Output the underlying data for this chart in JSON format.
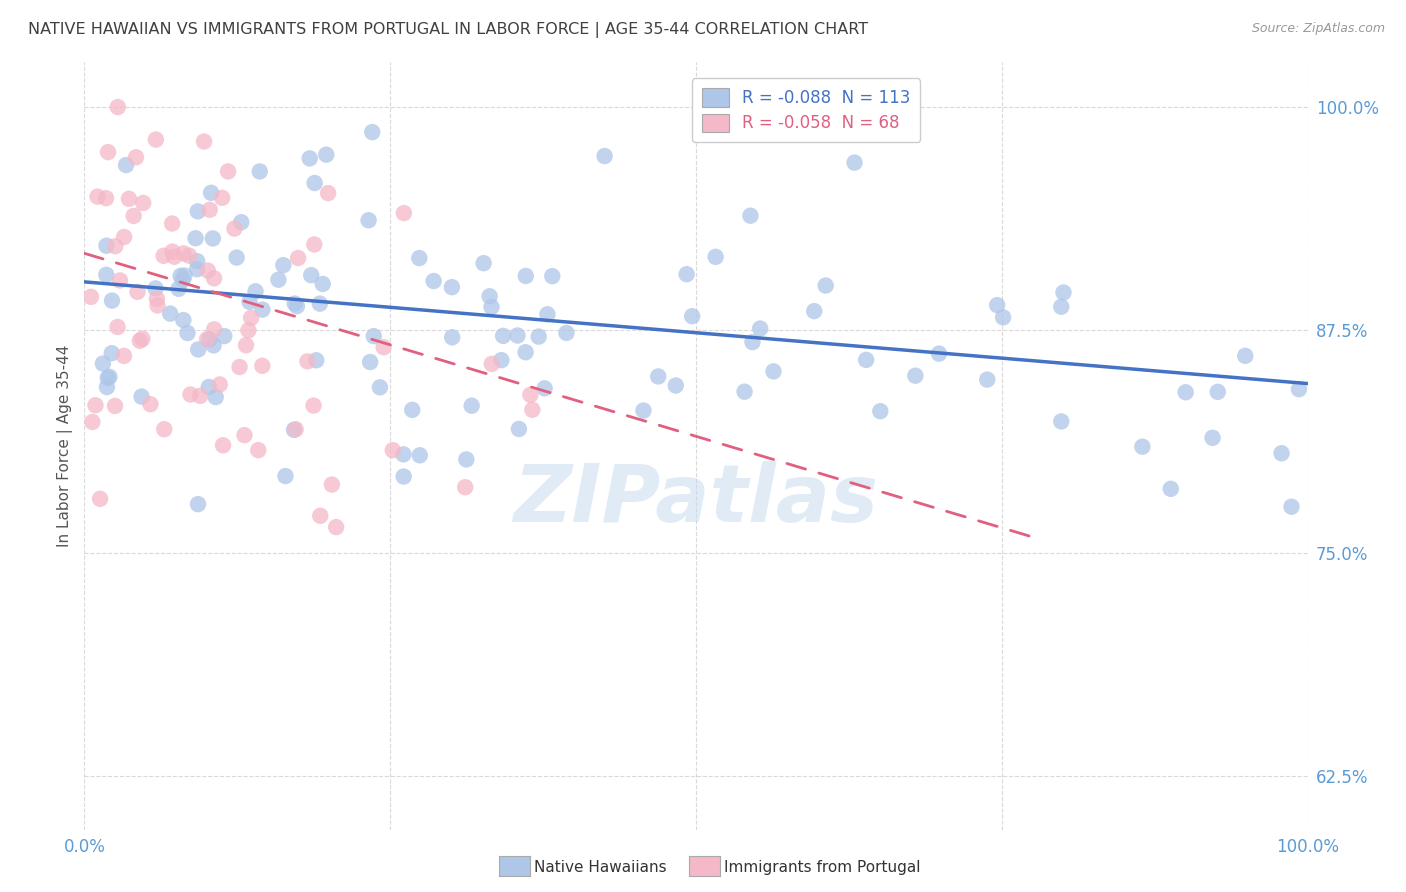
{
  "title": "NATIVE HAWAIIAN VS IMMIGRANTS FROM PORTUGAL IN LABOR FORCE | AGE 35-44 CORRELATION CHART",
  "source": "Source: ZipAtlas.com",
  "ylabel": "In Labor Force | Age 35-44",
  "xlim": [
    0.0,
    1.0
  ],
  "ylim": [
    0.595,
    1.025
  ],
  "yticks": [
    0.625,
    0.75,
    0.875,
    1.0
  ],
  "ytick_labels": [
    "62.5%",
    "75.0%",
    "87.5%",
    "100.0%"
  ],
  "xticks": [
    0.0,
    0.25,
    0.5,
    0.75,
    1.0
  ],
  "xtick_labels_bottom": [
    "0.0%",
    "",
    "",
    "",
    "100.0%"
  ],
  "legend_blue_label": "R = -0.088  N = 113",
  "legend_pink_label": "R = -0.058  N = 68",
  "legend_blue_color": "#aec6e8",
  "legend_pink_color": "#f4b8c8",
  "scatter_blue_color": "#aec6e8",
  "scatter_pink_color": "#f4b8c8",
  "trendline_blue_color": "#4472c4",
  "trendline_pink_color": "#e06080",
  "watermark": "ZIPatlas",
  "background_color": "#ffffff",
  "title_color": "#404040",
  "axis_label_color": "#5b9bd5",
  "grid_color": "#d9d9d9",
  "blue_trend_x0": 0.0,
  "blue_trend_y0": 0.902,
  "blue_trend_x1": 1.0,
  "blue_trend_y1": 0.845,
  "pink_trend_x0": 0.0,
  "pink_trend_y0": 0.918,
  "pink_trend_x1": 0.78,
  "pink_trend_y1": 0.758,
  "bottom_legend_blue": "Native Hawaiians",
  "bottom_legend_pink": "Immigrants from Portugal"
}
